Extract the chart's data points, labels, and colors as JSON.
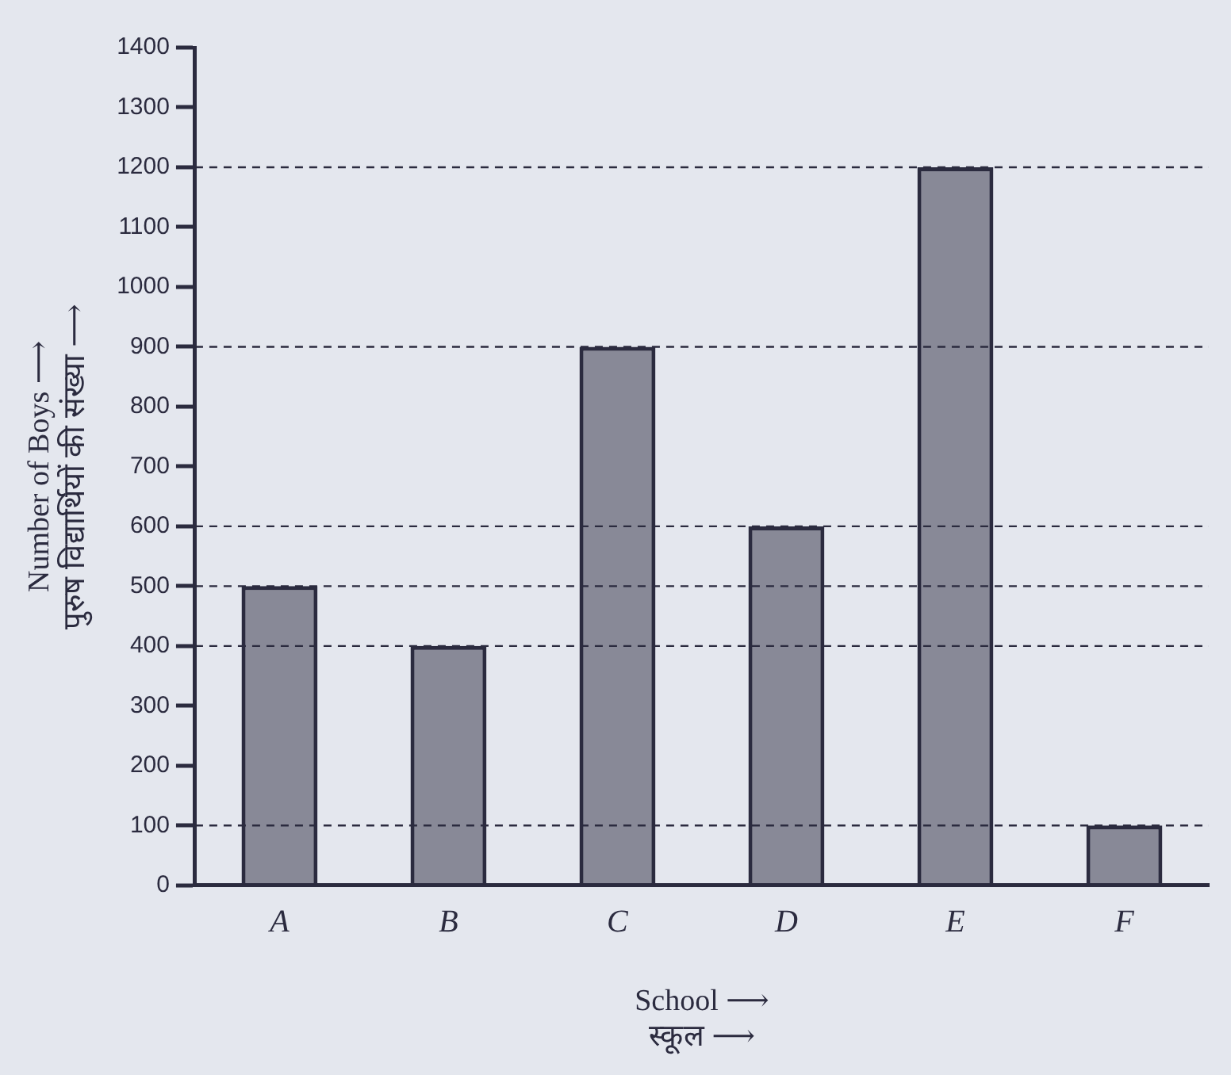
{
  "chart_data": {
    "type": "bar",
    "xlabel": "School ⟶\nस्कूल ⟶",
    "ylabel": "Number of Boys ⟶\nपुरुष विद्यार्थियों की संख्या ⟶",
    "categories": [
      "A",
      "B",
      "C",
      "D",
      "E",
      "F"
    ],
    "values": [
      500,
      400,
      900,
      600,
      1200,
      100
    ],
    "color": "#2b2b3f",
    "ylim": [
      0,
      1400
    ],
    "yticks": [
      0,
      100,
      200,
      300,
      400,
      500,
      600,
      700,
      800,
      900,
      1000,
      1100,
      1200,
      1300,
      1400
    ],
    "ref_lines": [
      {
        "axis": "y",
        "value": 100,
        "line_style": "dashed"
      },
      {
        "axis": "y",
        "value": 400,
        "line_style": "dashed"
      },
      {
        "axis": "y",
        "value": 500,
        "line_style": "dashed"
      },
      {
        "axis": "y",
        "value": 600,
        "line_style": "dashed"
      },
      {
        "axis": "y",
        "value": 900,
        "line_style": "dashed"
      },
      {
        "axis": "y",
        "value": 1200,
        "line_style": "dashed"
      }
    ],
    "grid": false,
    "legend": false
  }
}
